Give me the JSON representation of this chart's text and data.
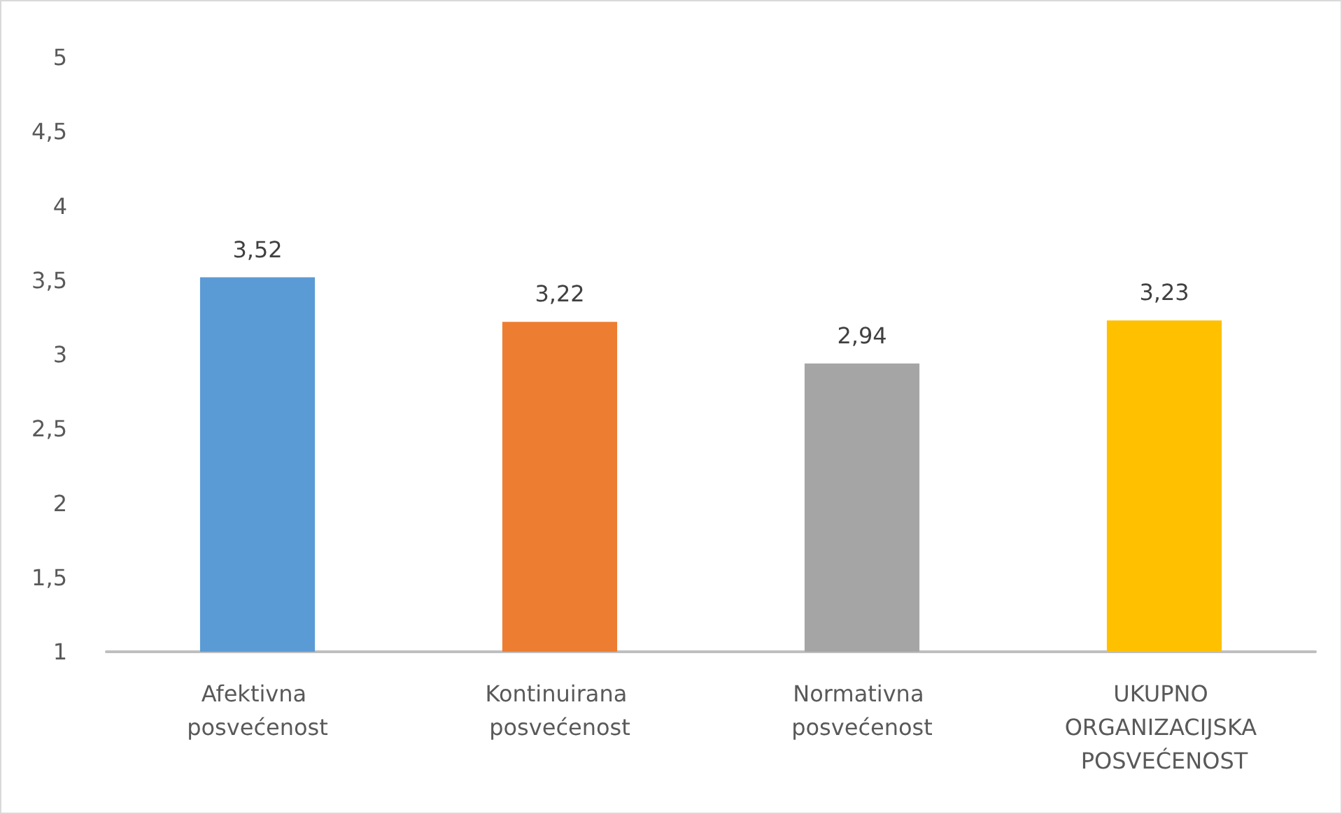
{
  "chart_data": {
    "type": "bar",
    "categories": [
      "Afektivna posvećenost",
      "Kontinuirana posvećenost",
      "Normativna posvećenost",
      "UKUPNO ORGANIZACIJSKA POSVEĆENOST"
    ],
    "values": [
      3.52,
      3.22,
      2.94,
      3.23
    ],
    "colors": [
      "#5b9bd5",
      "#ed7d31",
      "#a5a5a5",
      "#ffc000"
    ],
    "value_labels": [
      "3,52",
      "3,22",
      "2,94",
      "3,23"
    ],
    "ylim": [
      1,
      5
    ],
    "yticks": [
      1,
      {
        "value": 1.5,
        "label": "1,5"
      },
      2,
      {
        "value": 2.5,
        "label": "2,5"
      },
      3,
      {
        "value": 3.5,
        "label": "3,5"
      },
      4,
      {
        "value": 4.5,
        "label": "4,5"
      },
      5
    ],
    "grid": false
  }
}
